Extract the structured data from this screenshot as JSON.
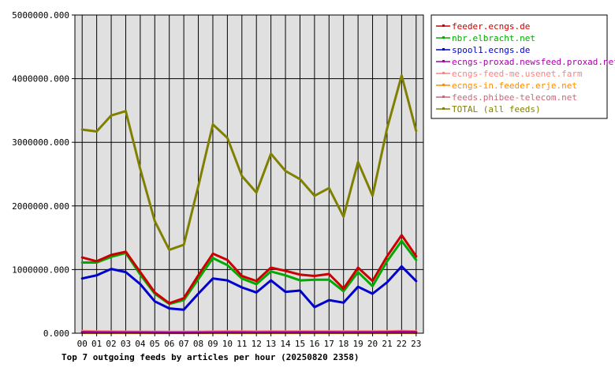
{
  "chart_data": {
    "type": "line",
    "title": "Top 7 outgoing feeds by articles per hour (20250820 2358)",
    "categories": [
      "00",
      "01",
      "02",
      "03",
      "04",
      "05",
      "06",
      "07",
      "08",
      "09",
      "10",
      "11",
      "12",
      "13",
      "14",
      "15",
      "16",
      "17",
      "18",
      "19",
      "20",
      "21",
      "22",
      "23"
    ],
    "y_ticks": [
      "0.000",
      "1000000.000",
      "2000000.000",
      "3000000.000",
      "4000000.000",
      "5000000.000"
    ],
    "ylim": [
      0,
      5000000
    ],
    "grid": true,
    "legend_position": "right",
    "plot_background": "#e0e0e0",
    "series": [
      {
        "name": "feeder.ecngs.de",
        "color": "#cc0000",
        "values": [
          1190000,
          1130000,
          1230000,
          1280000,
          960000,
          640000,
          470000,
          550000,
          910000,
          1250000,
          1150000,
          900000,
          820000,
          1030000,
          980000,
          920000,
          900000,
          930000,
          700000,
          1030000,
          820000,
          1210000,
          1540000,
          1210000
        ]
      },
      {
        "name": "nbr.elbracht.net",
        "color": "#00aa00",
        "values": [
          1110000,
          1110000,
          1200000,
          1260000,
          920000,
          620000,
          460000,
          520000,
          850000,
          1180000,
          1070000,
          860000,
          770000,
          970000,
          910000,
          830000,
          840000,
          840000,
          660000,
          960000,
          740000,
          1130000,
          1450000,
          1150000
        ]
      },
      {
        "name": "spool1.ecngs.de",
        "color": "#0000cc",
        "values": [
          860000,
          910000,
          1010000,
          960000,
          770000,
          500000,
          390000,
          370000,
          620000,
          860000,
          830000,
          720000,
          640000,
          830000,
          650000,
          670000,
          410000,
          520000,
          480000,
          730000,
          620000,
          800000,
          1050000,
          820000
        ]
      },
      {
        "name": "ecngs-proxad.newsfeed.proxad.net",
        "color": "#aa00aa",
        "values": [
          18000,
          15000,
          14000,
          13000,
          12000,
          11000,
          10000,
          10000,
          11000,
          13000,
          14000,
          14000,
          13000,
          14000,
          14000,
          15000,
          15000,
          15000,
          14000,
          15000,
          15000,
          17000,
          22000,
          18000
        ]
      },
      {
        "name": "ecngs-feed-me.usenet.farm",
        "color": "#ff8080",
        "values": [
          35000,
          28000,
          26000,
          25000,
          24000,
          23000,
          22000,
          22000,
          24000,
          26000,
          27000,
          27000,
          26000,
          27000,
          27000,
          28000,
          28000,
          28000,
          27000,
          28000,
          28000,
          30000,
          34000,
          30000
        ]
      },
      {
        "name": "ecngs-in.feeder.erje.net",
        "color": "#ff8c00",
        "values": [
          6000,
          5000,
          5000,
          5000,
          5000,
          4000,
          4000,
          4000,
          5000,
          5000,
          5000,
          5000,
          5000,
          5000,
          5000,
          5000,
          5000,
          5000,
          5000,
          5000,
          5000,
          5000,
          6000,
          5000
        ]
      },
      {
        "name": "feeds.phibee-telecom.net",
        "color": "#cc6677",
        "values": [
          9000,
          8000,
          8000,
          8000,
          8000,
          7000,
          7000,
          7000,
          8000,
          8000,
          8000,
          8000,
          8000,
          8000,
          8000,
          8000,
          8000,
          8000,
          8000,
          8000,
          8000,
          9000,
          10000,
          9000
        ]
      },
      {
        "name": "TOTAL (all feeds)",
        "color": "#808000",
        "values": [
          3200000,
          3170000,
          3420000,
          3490000,
          2580000,
          1760000,
          1310000,
          1390000,
          2310000,
          3280000,
          3070000,
          2470000,
          2210000,
          2820000,
          2550000,
          2420000,
          2160000,
          2280000,
          1830000,
          2690000,
          2160000,
          3220000,
          4050000,
          3180000
        ]
      }
    ]
  }
}
